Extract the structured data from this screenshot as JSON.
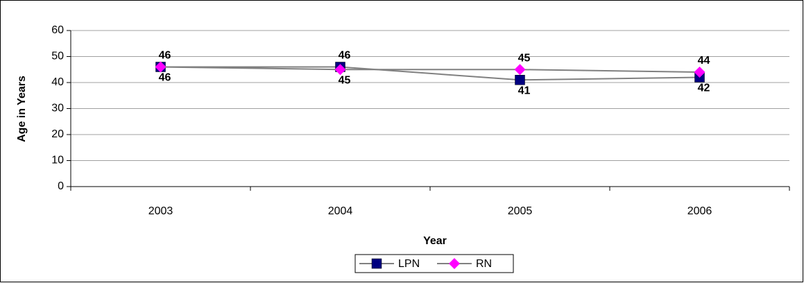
{
  "chart_data": {
    "type": "line",
    "categories": [
      "2003",
      "2004",
      "2005",
      "2006"
    ],
    "series": [
      {
        "name": "LPN",
        "color": "#000080",
        "marker": "square",
        "values": [
          46,
          46,
          41,
          42
        ]
      },
      {
        "name": "RN",
        "color": "#ff00ff",
        "marker": "diamond",
        "values": [
          46,
          45,
          45,
          44
        ]
      }
    ],
    "line_color": "#808080",
    "ylim": [
      0,
      60
    ],
    "yticks": [
      0,
      10,
      20,
      30,
      40,
      50,
      60
    ],
    "grid": true,
    "ylabel": "Age in Years",
    "xlabel": "Year",
    "legend": "bottom"
  }
}
